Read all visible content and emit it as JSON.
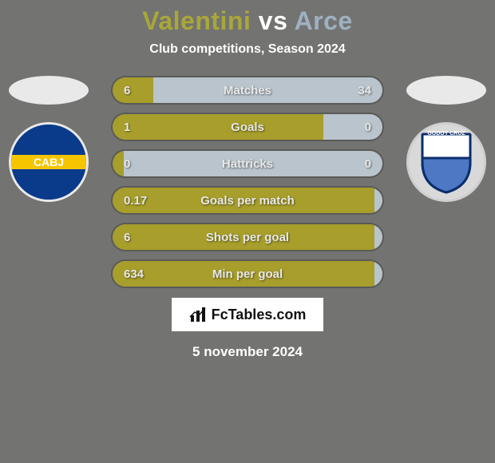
{
  "background_color": "#737371",
  "text_color": "#ffffff",
  "title": {
    "player1": "Valentini",
    "vs": "vs",
    "player2": "Arce",
    "player1_color": "#a9a73a",
    "vs_color": "#ffffff",
    "player2_color": "#9fb0c2"
  },
  "subtitle": "Club competitions, Season 2024",
  "date": "5 november 2024",
  "brand": "FcTables.com",
  "left_team": {
    "oval_color": "#e9e9e9",
    "badge_border": "#e9e9e9",
    "badge_top": "#0a3a8a",
    "badge_mid": "#f6c500",
    "badge_bot": "#0a3a8a",
    "badge_text": "CABJ",
    "badge_text_color": "#ffffff"
  },
  "right_team": {
    "oval_color": "#e9e9e9",
    "badge_border": "#cfcfcf",
    "badge_bg": "#d9d9d9",
    "shield_border": "#0a2e6b",
    "shield_fill_top": "#ffffff",
    "shield_fill_bot": "#4e78c4",
    "badge_text": "GODOY CRUZ",
    "badge_text_color": "#0a2e6b"
  },
  "bars": {
    "left_color": "#a79e2c",
    "right_color": "#b9c4cc",
    "track_color": "#b9c4cc",
    "border_color": "#5a5a58",
    "label_color": "#e8e8e8",
    "rows": [
      {
        "label": "Matches",
        "left_val": "6",
        "right_val": "34",
        "left_pct": 15
      },
      {
        "label": "Goals",
        "left_val": "1",
        "right_val": "0",
        "left_pct": 78
      },
      {
        "label": "Hattricks",
        "left_val": "0",
        "right_val": "0",
        "left_pct": 4
      },
      {
        "label": "Goals per match",
        "left_val": "0.17",
        "right_val": "",
        "left_pct": 97
      },
      {
        "label": "Shots per goal",
        "left_val": "6",
        "right_val": "",
        "left_pct": 97
      },
      {
        "label": "Min per goal",
        "left_val": "634",
        "right_val": "",
        "left_pct": 97
      }
    ]
  }
}
